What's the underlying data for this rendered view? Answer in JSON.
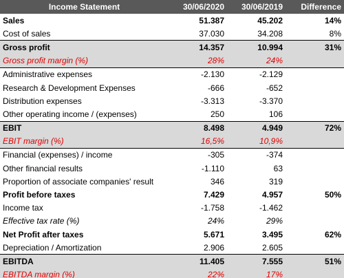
{
  "table": {
    "header": [
      "Income Statement",
      "30/06/2020",
      "30/06/2019",
      "Difference"
    ],
    "rows": [
      {
        "label": "Sales",
        "v2020": "51.387",
        "v2019": "45.202",
        "diff": "14%"
      },
      {
        "label": "Cost of sales",
        "v2020": "37.030",
        "v2019": "34.208",
        "diff": "8%"
      },
      {
        "label": "Gross profit",
        "v2020": "14.357",
        "v2019": "10.994",
        "diff": "31%"
      },
      {
        "label": "Gross profit margin (%)",
        "v2020": "28%",
        "v2019": "24%"
      },
      {
        "label": "Administrative expenses",
        "v2020": "-2.130",
        "v2019": "-2.129"
      },
      {
        "label": "Research & Development Expenses",
        "v2020": "-666",
        "v2019": "-652"
      },
      {
        "label": "Distribution expenses",
        "v2020": "-3.313",
        "v2019": "-3.370"
      },
      {
        "label": "Other operating income / (expenses)",
        "v2020": "250",
        "v2019": "106"
      },
      {
        "label": "EBIT",
        "v2020": "8.498",
        "v2019": "4.949",
        "diff": "72%"
      },
      {
        "label": "EBIT margin (%)",
        "v2020": "16,5%",
        "v2019": "10,9%"
      },
      {
        "label": "Financial (expenses) / income",
        "v2020": "-305",
        "v2019": "-374"
      },
      {
        "label": "Other financial results",
        "v2020": "-1.110",
        "v2019": "63"
      },
      {
        "label": "Proportion of associate companies' result",
        "v2020": "346",
        "v2019": "319"
      },
      {
        "label": "Profit before taxes",
        "v2020": "7.429",
        "v2019": "4.957",
        "diff": "50%"
      },
      {
        "label": "Income tax",
        "v2020": "-1.758",
        "v2019": "-1.462"
      },
      {
        "label": "Effective tax rate (%)",
        "v2020": "24%",
        "v2019": "29%"
      },
      {
        "label": "Net Profit after taxes",
        "v2020": "5.671",
        "v2019": "3.495",
        "diff": "62%"
      },
      {
        "label": "Depreciation / Amortization",
        "v2020": "2.906",
        "v2019": "2.605"
      },
      {
        "label": "EBITDA",
        "v2020": "11.405",
        "v2019": "7.555",
        "diff": "51%"
      },
      {
        "label": "EBITDA margin (%)",
        "v2020": "22%",
        "v2019": "17%"
      }
    ]
  }
}
